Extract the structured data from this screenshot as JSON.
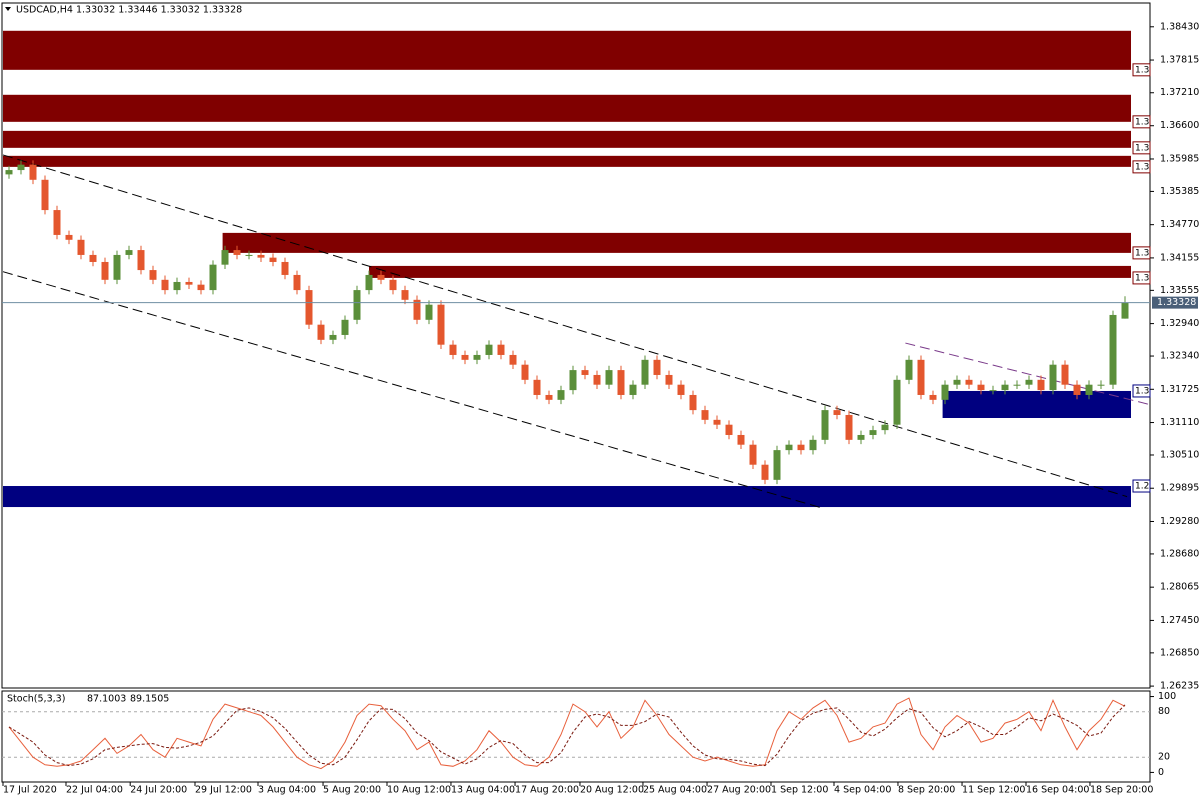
{
  "chart_data": [
    {
      "type": "candlestick",
      "title": "USDCAD,H4  1.33032 1.33446 1.33032 1.33328",
      "up_color": "#5b8f3a",
      "down_color": "#e4572e",
      "open": [
        1.357,
        1.3578,
        1.3588,
        1.356,
        1.3504,
        1.3458,
        1.3449,
        1.3421,
        1.3408,
        1.3375,
        1.3421,
        1.343,
        1.3393,
        1.3375,
        1.3356,
        1.3371,
        1.3366,
        1.3356,
        1.3403,
        1.343,
        1.3421,
        1.3421,
        1.3416,
        1.3408,
        1.3384,
        1.3356,
        1.3292,
        1.3264,
        1.3273,
        1.3301,
        1.3356,
        1.3384,
        1.3375,
        1.3356,
        1.3338,
        1.3301,
        1.3329,
        1.3255,
        1.3236,
        1.3227,
        1.3236,
        1.3255,
        1.3236,
        1.3218,
        1.319,
        1.3162,
        1.3153,
        1.3171,
        1.3208,
        1.3199,
        1.3181,
        1.3208,
        1.3162,
        1.3181,
        1.3227,
        1.3199,
        1.3181,
        1.3162,
        1.3134,
        1.3116,
        1.3107,
        1.3088,
        1.307,
        1.3033,
        1.3005,
        1.306,
        1.307,
        1.306,
        1.3079,
        1.3134,
        1.3125,
        1.3079,
        1.3088,
        1.3097,
        1.3107,
        1.319,
        1.3227,
        1.3162,
        1.3153,
        1.3181,
        1.319,
        1.3181,
        1.3171,
        1.3171,
        1.3181,
        1.3181,
        1.319,
        1.3171,
        1.3218,
        1.3181,
        1.3162,
        1.3181,
        1.3181,
        1.33032
      ],
      "high": [
        1.3586,
        1.3596,
        1.3596,
        1.3568,
        1.3512,
        1.3466,
        1.3457,
        1.3429,
        1.3416,
        1.3429,
        1.3438,
        1.3438,
        1.3401,
        1.3383,
        1.3379,
        1.3379,
        1.3374,
        1.3411,
        1.3438,
        1.3438,
        1.3429,
        1.3429,
        1.3424,
        1.3416,
        1.3392,
        1.3364,
        1.33,
        1.3281,
        1.3309,
        1.3364,
        1.3392,
        1.3392,
        1.3383,
        1.3364,
        1.3346,
        1.3337,
        1.3337,
        1.3263,
        1.3244,
        1.3244,
        1.3263,
        1.3263,
        1.3244,
        1.3226,
        1.3198,
        1.317,
        1.3179,
        1.3216,
        1.3216,
        1.3207,
        1.3216,
        1.3216,
        1.3189,
        1.3235,
        1.3235,
        1.3207,
        1.3189,
        1.317,
        1.3142,
        1.3124,
        1.3115,
        1.3096,
        1.3078,
        1.3041,
        1.3068,
        1.3078,
        1.3078,
        1.3087,
        1.3142,
        1.3142,
        1.3133,
        1.3096,
        1.3105,
        1.3115,
        1.3198,
        1.3235,
        1.3235,
        1.317,
        1.3189,
        1.3198,
        1.3198,
        1.3189,
        1.3179,
        1.3189,
        1.3189,
        1.3198,
        1.3198,
        1.3226,
        1.3226,
        1.3189,
        1.3189,
        1.3189,
        1.3318,
        1.33446
      ],
      "low": [
        1.3562,
        1.357,
        1.3552,
        1.3496,
        1.345,
        1.3441,
        1.3413,
        1.34,
        1.3367,
        1.3367,
        1.3413,
        1.3385,
        1.3367,
        1.3348,
        1.3348,
        1.3358,
        1.3348,
        1.3348,
        1.3395,
        1.3413,
        1.3413,
        1.3408,
        1.34,
        1.3376,
        1.3348,
        1.3284,
        1.3256,
        1.3256,
        1.3265,
        1.3293,
        1.3348,
        1.3367,
        1.3348,
        1.333,
        1.3293,
        1.3293,
        1.3247,
        1.3228,
        1.3219,
        1.3219,
        1.3228,
        1.3228,
        1.321,
        1.3182,
        1.3154,
        1.3145,
        1.3145,
        1.3163,
        1.3191,
        1.3173,
        1.3173,
        1.3154,
        1.3154,
        1.3173,
        1.3191,
        1.3173,
        1.3154,
        1.3126,
        1.3108,
        1.3099,
        1.308,
        1.3062,
        1.3025,
        1.2997,
        1.2997,
        1.3052,
        1.3052,
        1.3052,
        1.3071,
        1.3117,
        1.3071,
        1.3071,
        1.308,
        1.3089,
        1.3099,
        1.3182,
        1.3154,
        1.3145,
        1.3145,
        1.3173,
        1.3173,
        1.3163,
        1.3163,
        1.3163,
        1.3173,
        1.3173,
        1.3163,
        1.3163,
        1.3173,
        1.3154,
        1.3154,
        1.3173,
        1.3173,
        1.33032
      ],
      "close": [
        1.3578,
        1.3588,
        1.356,
        1.3504,
        1.3458,
        1.3449,
        1.3421,
        1.3408,
        1.3375,
        1.3421,
        1.343,
        1.3393,
        1.3375,
        1.3356,
        1.3371,
        1.3366,
        1.3356,
        1.3403,
        1.343,
        1.3421,
        1.3421,
        1.3416,
        1.3408,
        1.3384,
        1.3356,
        1.3292,
        1.3264,
        1.3273,
        1.3301,
        1.3356,
        1.3384,
        1.3375,
        1.3356,
        1.3338,
        1.3301,
        1.3329,
        1.3255,
        1.3236,
        1.3227,
        1.3236,
        1.3255,
        1.3236,
        1.3218,
        1.319,
        1.3162,
        1.3153,
        1.3171,
        1.3208,
        1.3199,
        1.3181,
        1.3208,
        1.3162,
        1.3181,
        1.3227,
        1.3199,
        1.3181,
        1.3162,
        1.3134,
        1.3116,
        1.3107,
        1.3088,
        1.307,
        1.3033,
        1.3005,
        1.306,
        1.307,
        1.306,
        1.3079,
        1.3134,
        1.3125,
        1.3079,
        1.3088,
        1.3097,
        1.3107,
        1.319,
        1.3227,
        1.3162,
        1.3153,
        1.3181,
        1.319,
        1.3181,
        1.3171,
        1.3171,
        1.3181,
        1.3181,
        1.319,
        1.3171,
        1.3218,
        1.3181,
        1.3162,
        1.3181,
        1.3181,
        1.331,
        1.33328
      ],
      "xlim": [
        0,
        94
      ],
      "xticks": [
        {
          "value": 0,
          "label": "17 Jul 2020"
        },
        {
          "value": 5.25,
          "label": "22 Jul 04:00"
        },
        {
          "value": 10.6,
          "label": "24 Jul 20:00"
        },
        {
          "value": 16,
          "label": "29 Jul 12:00"
        },
        {
          "value": 21.25,
          "label": "3 Aug 04:00"
        },
        {
          "value": 26.67,
          "label": "5 Aug 20:00"
        },
        {
          "value": 32,
          "label": "10 Aug 12:00"
        },
        {
          "value": 37.33,
          "label": "13 Aug 04:00"
        },
        {
          "value": 42.67,
          "label": "17 Aug 20:00"
        },
        {
          "value": 48.08,
          "label": "20 Aug 12:00"
        },
        {
          "value": 53.33,
          "label": "25 Aug 04:00"
        },
        {
          "value": 58.67,
          "label": "27 Aug 20:00"
        },
        {
          "value": 64,
          "label": "1 Sep 12:00"
        },
        {
          "value": 69.25,
          "label": "4 Sep 04:00"
        },
        {
          "value": 74.58,
          "label": "8 Sep 20:00"
        },
        {
          "value": 79.92,
          "label": "11 Sep 12:00"
        },
        {
          "value": 85.25,
          "label": "16 Sep 04:00"
        },
        {
          "value": 90.58,
          "label": "18 Sep 20:00"
        }
      ],
      "ylim": [
        1.262,
        1.3887
      ],
      "yticks": [
        {
          "value": 1.3843,
          "label": "1.38430"
        },
        {
          "value": 1.37815,
          "label": "1.37815"
        },
        {
          "value": 1.3721,
          "label": "1.37210"
        },
        {
          "value": 1.366,
          "label": "1.36600"
        },
        {
          "value": 1.35985,
          "label": "1.35985"
        },
        {
          "value": 1.35385,
          "label": "1.35385"
        },
        {
          "value": 1.3477,
          "label": "1.34770"
        },
        {
          "value": 1.34155,
          "label": "1.34155"
        },
        {
          "value": 1.33555,
          "label": "1.33555"
        },
        {
          "value": 1.3294,
          "label": "1.32940"
        },
        {
          "value": 1.3234,
          "label": "1.32340"
        },
        {
          "value": 1.31725,
          "label": "1.31725"
        },
        {
          "value": 1.3111,
          "label": "1.31110"
        },
        {
          "value": 1.3051,
          "label": "1.30510"
        },
        {
          "value": 1.29895,
          "label": "1.29895"
        },
        {
          "value": 1.2928,
          "label": "1.29280"
        },
        {
          "value": 1.2868,
          "label": "1.28680"
        },
        {
          "value": 1.28065,
          "label": "1.28065"
        },
        {
          "value": 1.2745,
          "label": "1.27450"
        },
        {
          "value": 1.2685,
          "label": "1.26850"
        },
        {
          "value": 1.26235,
          "label": "1.26235"
        }
      ],
      "price_line_color": "#6f8ea3",
      "zones": [
        {
          "from": 0,
          "to": 94,
          "low": 1.37634,
          "high": 1.38356,
          "color": "#800000",
          "label": "1.3"
        },
        {
          "from": 0,
          "to": 94,
          "low": 1.36672,
          "high": 1.37172,
          "color": "#800000",
          "label": "1.3"
        },
        {
          "from": 0,
          "to": 94,
          "low": 1.36191,
          "high": 1.36505,
          "color": "#800000",
          "label": "1.3"
        },
        {
          "from": 0,
          "to": 94,
          "low": 1.35839,
          "high": 1.36043,
          "color": "#800000",
          "label": "1.3"
        },
        {
          "from": 18.3,
          "to": 94,
          "low": 1.34248,
          "high": 1.34618,
          "color": "#800000",
          "label": "1.3"
        },
        {
          "from": 30.5,
          "to": 94,
          "low": 1.33785,
          "high": 1.34007,
          "color": "#800000",
          "label": "1.3"
        },
        {
          "from": 78.3,
          "to": 94,
          "low": 1.31194,
          "high": 1.31694,
          "color": "#000080",
          "label": "1.3"
        },
        {
          "from": 0,
          "to": 94,
          "low": 1.29547,
          "high": 1.29936,
          "color": "#000080",
          "label": "1.2"
        }
      ],
      "trendlines": [
        {
          "x": [
            0,
            93.67
          ],
          "y": [
            1.3606,
            1.2974
          ],
          "color": "#000000"
        },
        {
          "x": [
            0,
            68.25
          ],
          "y": [
            1.339,
            1.2953
          ],
          "color": "#000000"
        },
        {
          "x": [
            75.2,
            95.6
          ],
          "y": [
            1.3258,
            1.3144
          ],
          "color": "#7a3a8a"
        }
      ]
    },
    {
      "type": "line",
      "title": "Stoch(5,3,3)",
      "ylim": [
        -10,
        106
      ],
      "yticks": [
        0,
        20,
        80,
        100
      ],
      "series": [
        {
          "color": "#e8603c",
          "dash": false,
          "values": [
            60,
            40,
            20,
            10,
            8,
            10,
            15,
            30,
            45,
            25,
            35,
            50,
            30,
            20,
            45,
            40,
            35,
            70,
            90,
            85,
            80,
            75,
            60,
            40,
            20,
            10,
            5,
            15,
            40,
            75,
            90,
            88,
            70,
            55,
            30,
            40,
            10,
            8,
            15,
            30,
            55,
            40,
            20,
            10,
            8,
            20,
            50,
            90,
            80,
            60,
            80,
            45,
            60,
            95,
            75,
            50,
            35,
            20,
            15,
            20,
            15,
            10,
            8,
            10,
            55,
            80,
            70,
            85,
            95,
            75,
            40,
            45,
            60,
            65,
            90,
            98,
            50,
            30,
            60,
            75,
            65,
            40,
            45,
            65,
            70,
            80,
            55,
            95,
            60,
            30,
            55,
            70,
            95,
            87.1003
          ]
        },
        {
          "color": "#7a1a10",
          "dash": true,
          "values": [
            60,
            50,
            40,
            23,
            13,
            9,
            11,
            18,
            30,
            33,
            35,
            37,
            38,
            33,
            32,
            35,
            40,
            48,
            65,
            82,
            85,
            80,
            72,
            58,
            40,
            23,
            12,
            10,
            20,
            43,
            68,
            84,
            83,
            71,
            52,
            42,
            27,
            19,
            11,
            18,
            33,
            42,
            38,
            23,
            13,
            13,
            26,
            53,
            73,
            77,
            73,
            62,
            62,
            67,
            77,
            73,
            53,
            35,
            23,
            18,
            17,
            15,
            11,
            9,
            24,
            48,
            68,
            78,
            83,
            85,
            70,
            53,
            48,
            57,
            72,
            84,
            79,
            59,
            47,
            55,
            67,
            60,
            50,
            50,
            60,
            72,
            68,
            77,
            70,
            62,
            48,
            52,
            73,
            89.1505
          ]
        }
      ]
    }
  ]
}
